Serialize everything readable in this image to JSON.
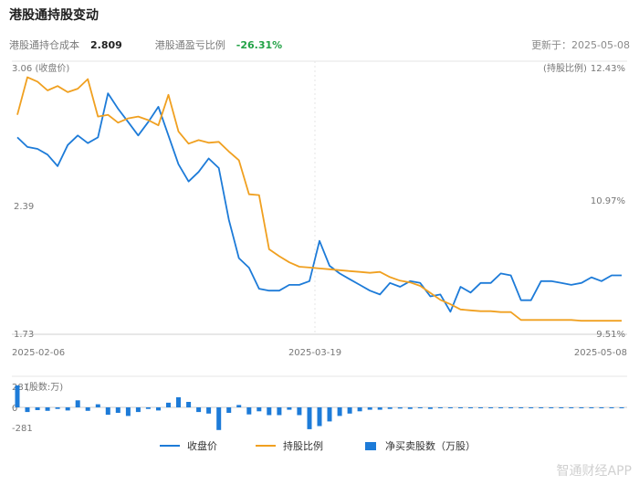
{
  "header": {
    "title": "港股通持股变动",
    "cost_label": "港股通持仓成本",
    "cost_value": "2.809",
    "pnl_label": "港股通盈亏比例",
    "pnl_value": "-26.31%",
    "updated": "更新于：2025-05-08"
  },
  "colors": {
    "close": "#1d7bd8",
    "ratio": "#f0a020",
    "bar": "#1d7bd8",
    "grid": "#e6e6e6",
    "pnl": "#22a246"
  },
  "chart_data": [
    {
      "type": "line",
      "x": [
        "2025-02-06",
        "2025-02-07",
        "2025-02-10",
        "2025-02-11",
        "2025-02-12",
        "2025-02-13",
        "2025-02-14",
        "2025-02-17",
        "2025-02-18",
        "2025-02-19",
        "2025-02-20",
        "2025-02-21",
        "2025-02-24",
        "2025-02-25",
        "2025-02-26",
        "2025-02-27",
        "2025-02-28",
        "2025-03-03",
        "2025-03-04",
        "2025-03-05",
        "2025-03-06",
        "2025-03-07",
        "2025-03-10",
        "2025-03-11",
        "2025-03-12",
        "2025-03-13",
        "2025-03-14",
        "2025-03-17",
        "2025-03-18",
        "2025-03-19",
        "2025-03-20",
        "2025-03-21",
        "2025-03-24",
        "2025-03-25",
        "2025-03-26",
        "2025-03-27",
        "2025-03-28",
        "2025-03-31",
        "2025-04-01",
        "2025-04-02",
        "2025-04-03",
        "2025-04-07",
        "2025-04-08",
        "2025-04-09",
        "2025-04-10",
        "2025-04-11",
        "2025-04-14",
        "2025-04-15",
        "2025-04-16",
        "2025-04-17",
        "2025-04-22",
        "2025-04-23",
        "2025-04-24",
        "2025-04-25",
        "2025-04-28",
        "2025-04-29",
        "2025-04-30",
        "2025-05-02",
        "2025-05-06",
        "2025-05-07",
        "2025-05-08"
      ],
      "xticks": [
        "2025-02-06",
        "2025-03-19",
        "2025-05-08"
      ],
      "left_axis": {
        "label": "(收盘价)",
        "ticks": [
          "3.06",
          "2.39",
          "1.73"
        ],
        "range": [
          1.73,
          3.06
        ]
      },
      "right_axis": {
        "label": "(持股比例)",
        "ticks": [
          "12.43%",
          "10.97%",
          "9.51%"
        ],
        "range": [
          9.51,
          12.43
        ]
      },
      "series": [
        {
          "name": "收盘价",
          "axis": "left",
          "values": [
            2.71,
            2.66,
            2.65,
            2.62,
            2.56,
            2.67,
            2.72,
            2.68,
            2.71,
            2.94,
            2.86,
            2.79,
            2.72,
            2.79,
            2.87,
            2.72,
            2.57,
            2.48,
            2.53,
            2.6,
            2.55,
            2.28,
            2.08,
            2.03,
            1.92,
            1.91,
            1.91,
            1.94,
            1.94,
            1.96,
            2.17,
            2.04,
            2.0,
            1.97,
            1.94,
            1.91,
            1.89,
            1.95,
            1.93,
            1.96,
            1.95,
            1.88,
            1.89,
            1.8,
            1.93,
            1.9,
            1.95,
            1.95,
            2.0,
            1.99,
            1.86,
            1.86,
            1.96,
            1.96,
            1.95,
            1.94,
            1.95,
            1.98,
            1.96,
            1.99,
            1.99
          ]
        },
        {
          "name": "持股比例",
          "axis": "right",
          "values": [
            11.92,
            12.35,
            12.3,
            12.2,
            12.25,
            12.18,
            12.22,
            12.33,
            11.9,
            11.92,
            11.83,
            11.88,
            11.9,
            11.86,
            11.8,
            12.15,
            11.73,
            11.59,
            11.63,
            11.6,
            11.61,
            11.5,
            11.4,
            11.01,
            11.0,
            10.38,
            10.3,
            10.23,
            10.18,
            10.17,
            10.16,
            10.15,
            10.14,
            10.13,
            10.12,
            10.11,
            10.12,
            10.06,
            10.02,
            10.0,
            9.96,
            9.88,
            9.8,
            9.75,
            9.69,
            9.68,
            9.67,
            9.67,
            9.66,
            9.66,
            9.57,
            9.57,
            9.57,
            9.57,
            9.57,
            9.57,
            9.56,
            9.56,
            9.56,
            9.56,
            9.56
          ]
        }
      ]
    },
    {
      "type": "bar",
      "title": "(股数:万)",
      "ticks": [
        "281",
        "0",
        "-281"
      ],
      "range": [
        -281,
        281
      ],
      "series": [
        {
          "name": "净买卖股数（万股）",
          "values": [
            281,
            -60,
            -35,
            -45,
            -20,
            -40,
            90,
            -45,
            40,
            -95,
            -70,
            -110,
            -60,
            -20,
            -40,
            60,
            130,
            70,
            -60,
            -80,
            -290,
            -70,
            30,
            -90,
            -50,
            -100,
            -100,
            -30,
            -100,
            -280,
            -240,
            -180,
            -110,
            -80,
            -50,
            -30,
            -30,
            -20,
            -15,
            -20,
            -10,
            -20,
            -10,
            -10,
            -8,
            -10,
            -12,
            -8,
            -6,
            -12,
            -6,
            -5,
            -5,
            -8,
            -6,
            -5,
            -4,
            -3,
            -4,
            -3,
            -3
          ]
        }
      ]
    }
  ],
  "legend": [
    {
      "label": "收盘价",
      "kind": "line",
      "color": "#1d7bd8"
    },
    {
      "label": "持股比例",
      "kind": "line",
      "color": "#f0a020"
    },
    {
      "label": "净买卖股数（万股）",
      "kind": "bar",
      "color": "#1d7bd8"
    }
  ],
  "watermark": "智通财经APP"
}
